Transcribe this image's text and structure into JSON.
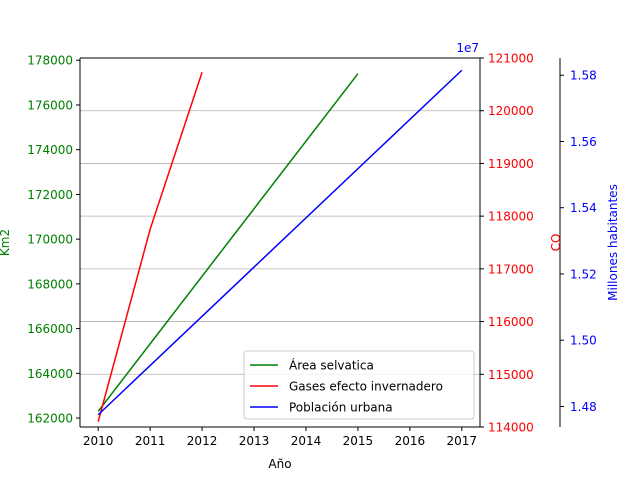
{
  "chart_data": {
    "type": "line",
    "x": [
      2010,
      2011,
      2012,
      2013,
      2014,
      2015,
      2016,
      2017
    ],
    "xlabel": "Año",
    "xlim": [
      2009.65,
      2017.35
    ],
    "axes": {
      "left": {
        "label": "Km2",
        "color": "#008000",
        "ylim": [
          161600,
          178100
        ],
        "ticks": [
          162000,
          164000,
          166000,
          168000,
          170000,
          172000,
          174000,
          176000,
          178000
        ]
      },
      "right": {
        "label": "CO",
        "color": "#ff0000",
        "ylim": [
          114000,
          121000
        ],
        "ticks": [
          114000,
          115000,
          116000,
          117000,
          118000,
          119000,
          120000,
          121000
        ]
      },
      "right2": {
        "label": "Millones habitantes",
        "color": "#0000ff",
        "ylim": [
          1.4738,
          1.5852
        ],
        "ticks": [
          1.48,
          1.5,
          1.52,
          1.54,
          1.56,
          1.58
        ],
        "tick_labels": [
          "1.48",
          "1.50",
          "1.52",
          "1.54",
          "1.56",
          "1.58"
        ],
        "offset_text": "1e7"
      }
    },
    "series": [
      {
        "name": "Área selvatica",
        "axis": "left",
        "color": "#008000",
        "x": [
          2010,
          2015
        ],
        "y": [
          162300,
          177400
        ]
      },
      {
        "name": "Gases efecto invernadero",
        "axis": "right",
        "color": "#ff0000",
        "x": [
          2010,
          2011,
          2012
        ],
        "y": [
          114100,
          117750,
          120730
        ]
      },
      {
        "name": "Población urbana",
        "axis": "right2",
        "color": "#0000ff",
        "x": [
          2010,
          2017
        ],
        "y": [
          1.4775,
          1.5815
        ]
      }
    ],
    "grid": {
      "axis": "right",
      "horizontal": true,
      "values": [
        114000,
        115000,
        116000,
        117000,
        118000,
        119000,
        120000,
        121000
      ]
    },
    "legend": {
      "placement": "lower-right"
    }
  }
}
